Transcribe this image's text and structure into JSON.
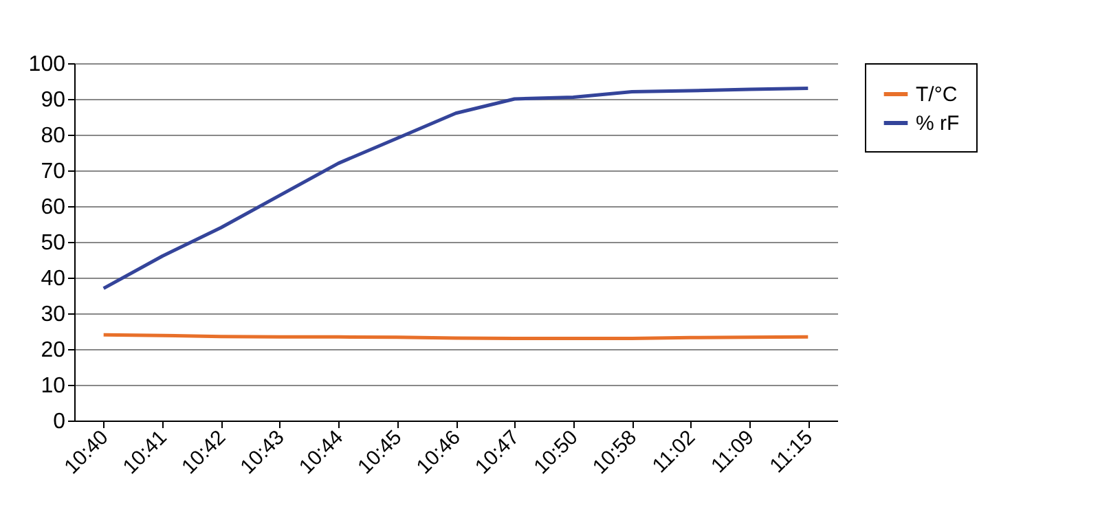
{
  "chart_data": {
    "type": "line",
    "categories": [
      "10:40",
      "10:41",
      "10:42",
      "10:43",
      "10:44",
      "10:45",
      "10:46",
      "10:47",
      "10:50",
      "10:58",
      "11:02",
      "11:09",
      "11:15"
    ],
    "series": [
      {
        "name": "T/°C",
        "color": "#e8702a",
        "values": [
          24,
          23.8,
          23.5,
          23.4,
          23.4,
          23.3,
          23.1,
          23,
          23,
          23,
          23.2,
          23.3,
          23.4
        ]
      },
      {
        "name": "% rF",
        "color": "#34449a",
        "values": [
          37,
          46,
          54,
          63,
          72,
          79,
          86,
          90,
          90.5,
          92,
          92.3,
          92.7,
          93
        ]
      }
    ],
    "ylim": [
      0,
      100
    ],
    "yticks": [
      0,
      10,
      20,
      30,
      40,
      50,
      60,
      70,
      80,
      90,
      100
    ],
    "grid": "y",
    "legend": "right",
    "marker": "none"
  }
}
